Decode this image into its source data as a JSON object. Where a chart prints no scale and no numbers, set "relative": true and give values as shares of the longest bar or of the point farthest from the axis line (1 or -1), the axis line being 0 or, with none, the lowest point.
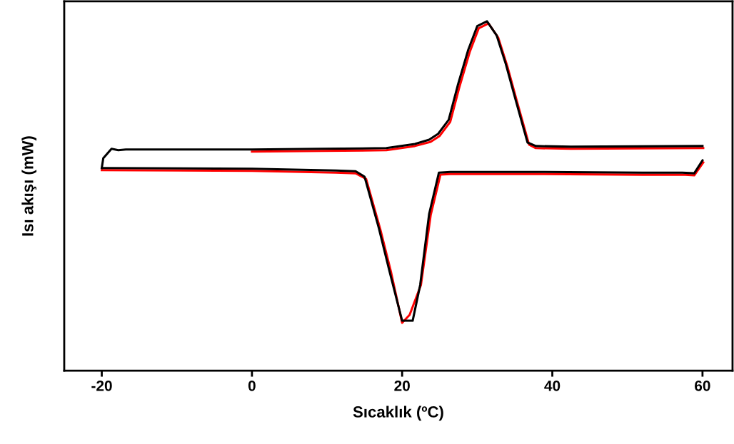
{
  "chart_data": {
    "type": "line",
    "relative": true,
    "xlabel": "Sıcaklık (ºC)",
    "ylabel": "Isı akışı (mW)",
    "xlim": [
      -25,
      64
    ],
    "xticks": [
      -20,
      0,
      20,
      40,
      60
    ],
    "grid": false,
    "line_style": "solid",
    "marker": "none",
    "series": [
      {
        "color": "#ff0000",
        "x": [
          -20,
          0,
          11.2,
          13.8,
          15.2,
          17.1,
          18.5,
          20.0,
          21.0,
          22.5,
          23.8,
          25.1,
          26.4,
          37.8,
          52.0,
          57.3,
          58.9,
          60.1
        ],
        "values": [
          0.574,
          0.572,
          0.567,
          0.565,
          0.549,
          0.404,
          0.284,
          0.137,
          0.16,
          0.245,
          0.445,
          0.561,
          0.563,
          0.563,
          0.561,
          0.561,
          0.559,
          0.596
        ]
      },
      {
        "color": "#ff0000",
        "x": [
          60.1,
          42.5,
          37.8,
          36.9,
          35.3,
          34.0,
          32.8,
          31.5,
          30.2,
          29.0,
          27.6,
          26.4,
          25.0,
          23.8,
          21.7,
          17.9,
          9.3,
          0
        ],
        "values": [
          0.637,
          0.635,
          0.637,
          0.647,
          0.77,
          0.872,
          0.953,
          0.994,
          0.98,
          0.912,
          0.81,
          0.712,
          0.672,
          0.655,
          0.643,
          0.631,
          0.629,
          0.627
        ]
      },
      {
        "color": "#000000",
        "x": [
          -20,
          0,
          11.2,
          13.8,
          15.0,
          16.9,
          18.3,
          20.0,
          21.4,
          22.4,
          23.6,
          24.9,
          26.4,
          37.8,
          52.0,
          57.3,
          58.9,
          60
        ],
        "values": [
          0.58,
          0.578,
          0.573,
          0.571,
          0.555,
          0.408,
          0.286,
          0.143,
          0.143,
          0.245,
          0.449,
          0.567,
          0.569,
          0.569,
          0.567,
          0.567,
          0.565,
          0.602
        ]
      },
      {
        "color": "#000000",
        "x": [
          60,
          42.5,
          37.8,
          36.7,
          35.1,
          33.8,
          32.6,
          31.3,
          30.0,
          28.8,
          27.4,
          26.2,
          24.8,
          23.6,
          21.7,
          17.9,
          9.3,
          0,
          -9.7,
          -16.8,
          -17.8,
          -18.7,
          -19.8,
          -20
        ],
        "values": [
          0.643,
          0.641,
          0.643,
          0.653,
          0.776,
          0.878,
          0.959,
          1.0,
          0.986,
          0.918,
          0.816,
          0.718,
          0.678,
          0.661,
          0.649,
          0.637,
          0.635,
          0.633,
          0.633,
          0.633,
          0.631,
          0.635,
          0.608,
          0.58
        ]
      }
    ]
  }
}
